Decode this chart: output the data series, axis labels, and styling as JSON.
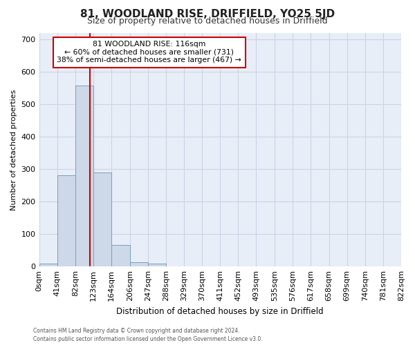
{
  "title": "81, WOODLAND RISE, DRIFFIELD, YO25 5JD",
  "subtitle": "Size of property relative to detached houses in Driffield",
  "xlabel": "Distribution of detached houses by size in Driffield",
  "ylabel": "Number of detached properties",
  "bar_edges": [
    0,
    41,
    82,
    123,
    164,
    206,
    247,
    288,
    329,
    370,
    411,
    452,
    493,
    535,
    576,
    617,
    658,
    699,
    740,
    781,
    822
  ],
  "bar_heights": [
    8,
    282,
    557,
    290,
    67,
    13,
    8,
    0,
    0,
    0,
    0,
    0,
    0,
    0,
    0,
    0,
    0,
    0,
    0,
    0
  ],
  "bar_color": "#cdd9e8",
  "bar_edge_color": "#7a9ec0",
  "grid_color": "#c8d4e4",
  "bg_color": "#e8eef8",
  "property_value": 116,
  "property_label": "81 WOODLAND RISE: 116sqm",
  "annotation_line1": "← 60% of detached houses are smaller (731)",
  "annotation_line2": "38% of semi-detached houses are larger (467) →",
  "vline_color": "#cc0000",
  "annotation_box_facecolor": "#ffffff",
  "annotation_box_edgecolor": "#cc0000",
  "ylim_max": 720,
  "footer1": "Contains HM Land Registry data © Crown copyright and database right 2024.",
  "footer2": "Contains public sector information licensed under the Open Government Licence v3.0."
}
